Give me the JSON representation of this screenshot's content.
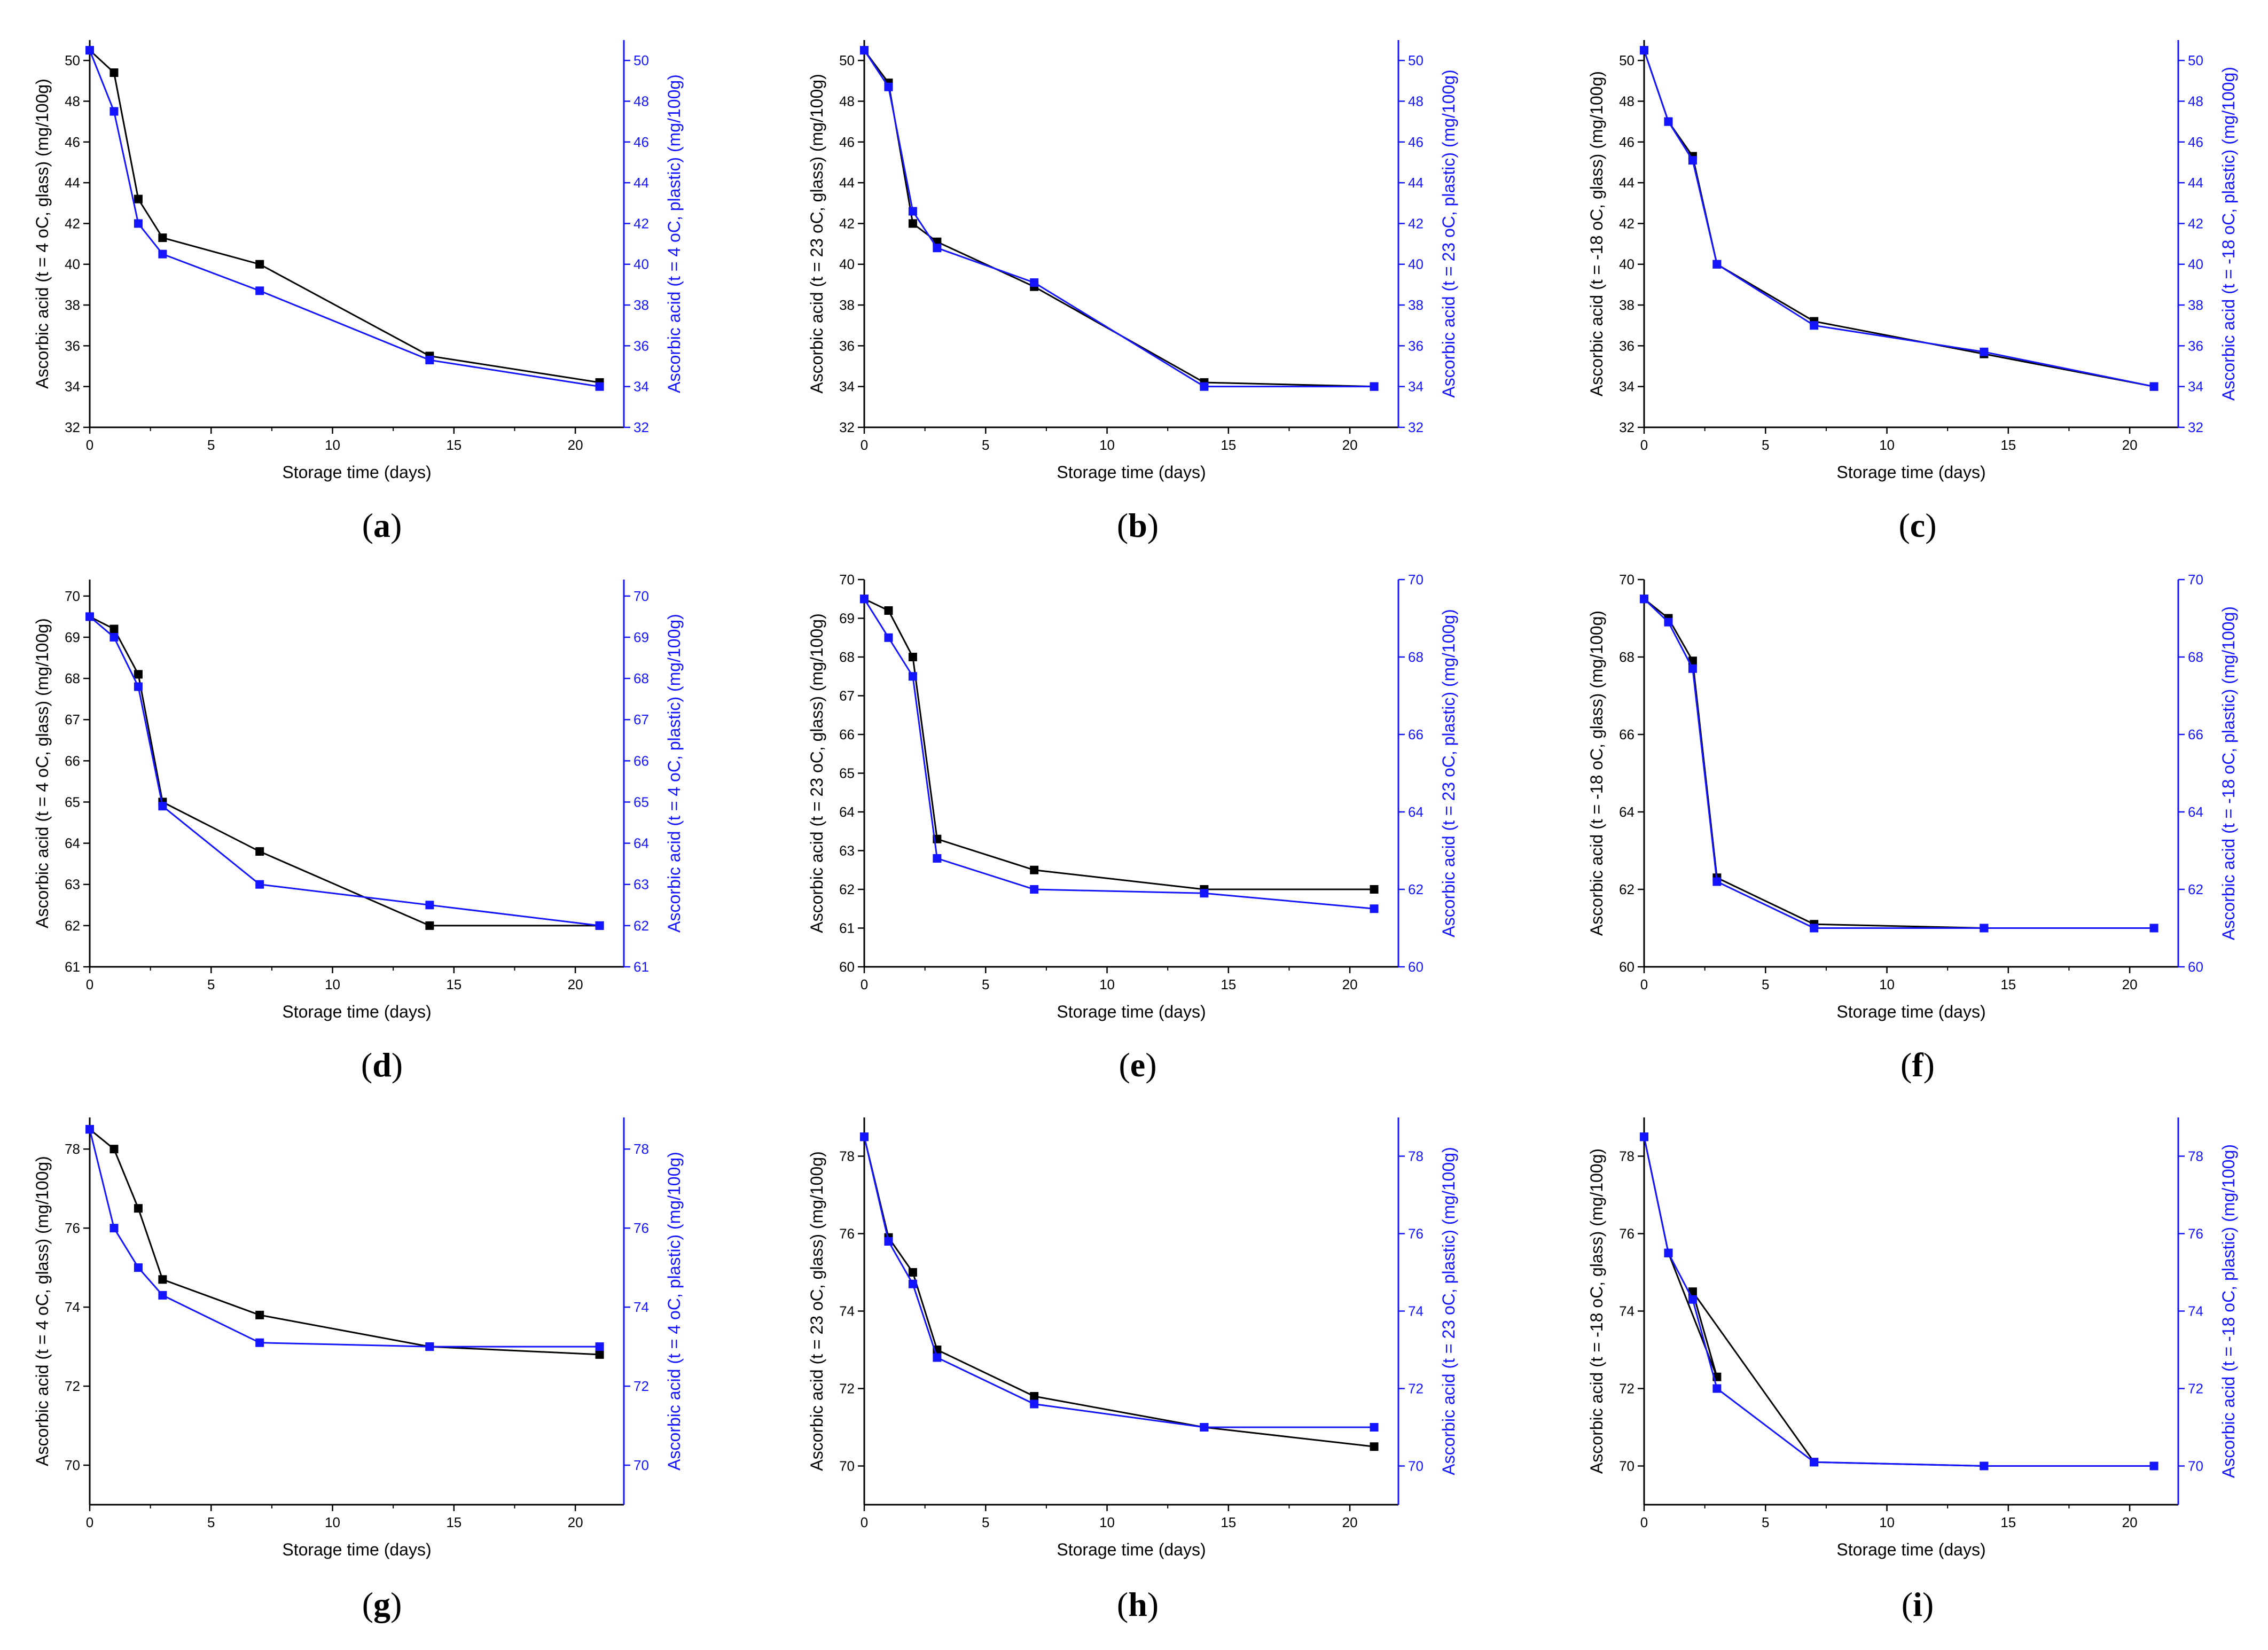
{
  "colors": {
    "glass": "#000000",
    "plastic": "#1414ff"
  },
  "chart_data": [
    {
      "panel": "a",
      "type": "line",
      "xlabel": "Storage time (days)",
      "ylabel": "Ascorbic acid (t = 4 oC, glass) (mg/100g)",
      "y2label": "Ascorbic acid (t = 4 oC, plastic) (mg/100g)",
      "xlim": [
        0,
        22
      ],
      "xticks": [
        0,
        5,
        10,
        15,
        20
      ],
      "ylim": [
        32,
        51
      ],
      "yticks": [
        32,
        34,
        36,
        38,
        40,
        42,
        44,
        46,
        48,
        50
      ],
      "series": [
        {
          "name": "glass",
          "x": [
            0,
            1,
            2,
            3,
            7,
            14,
            21
          ],
          "y": [
            50.5,
            49.4,
            43.2,
            41.3,
            40.0,
            35.5,
            34.2
          ]
        },
        {
          "name": "plastic",
          "x": [
            0,
            1,
            2,
            3,
            7,
            14,
            21
          ],
          "y": [
            50.5,
            47.5,
            42.0,
            40.5,
            38.7,
            35.3,
            34.0
          ]
        }
      ]
    },
    {
      "panel": "b",
      "type": "line",
      "xlabel": "Storage time (days)",
      "ylabel": "Ascorbic acid (t = 23 oC, glass) (mg/100g)",
      "y2label": "Ascorbic acid (t = 23 oC, plastic) (mg/100g)",
      "xlim": [
        0,
        22
      ],
      "xticks": [
        0,
        5,
        10,
        15,
        20
      ],
      "ylim": [
        32,
        51
      ],
      "yticks": [
        32,
        34,
        36,
        38,
        40,
        42,
        44,
        46,
        48,
        50
      ],
      "series": [
        {
          "name": "glass",
          "x": [
            0,
            1,
            2,
            3,
            7,
            14,
            21
          ],
          "y": [
            50.5,
            48.9,
            42.0,
            41.1,
            38.9,
            34.2,
            34.0
          ]
        },
        {
          "name": "plastic",
          "x": [
            0,
            1,
            2,
            3,
            7,
            14,
            21
          ],
          "y": [
            50.5,
            48.7,
            42.6,
            40.8,
            39.1,
            34.0,
            34.0
          ]
        }
      ]
    },
    {
      "panel": "c",
      "type": "line",
      "xlabel": "Storage time (days)",
      "ylabel": "Ascorbic acid (t = -18 oC, glass) (mg/100g)",
      "y2label": "Ascorbic acid (t = -18 oC, plastic) (mg/100g)",
      "xlim": [
        0,
        22
      ],
      "xticks": [
        0,
        5,
        10,
        15,
        20
      ],
      "ylim": [
        32,
        51
      ],
      "yticks": [
        32,
        34,
        36,
        38,
        40,
        42,
        44,
        46,
        48,
        50
      ],
      "series": [
        {
          "name": "glass",
          "x": [
            0,
            1,
            2,
            3,
            7,
            14,
            21
          ],
          "y": [
            50.5,
            47.0,
            45.3,
            40.0,
            37.2,
            35.6,
            34.0
          ]
        },
        {
          "name": "plastic",
          "x": [
            0,
            1,
            2,
            3,
            7,
            14,
            21
          ],
          "y": [
            50.5,
            47.0,
            45.1,
            40.0,
            37.0,
            35.7,
            34.0
          ]
        }
      ]
    },
    {
      "panel": "d",
      "type": "line",
      "xlabel": "Storage time (days)",
      "ylabel": "Ascorbic acid (t = 4 oC, glass) (mg/100g)",
      "y2label": "Ascorbic acid (t = 4 oC, plastic) (mg/100g)",
      "xlim": [
        0,
        22
      ],
      "xticks": [
        0,
        5,
        10,
        15,
        20
      ],
      "ylim": [
        61,
        70.4
      ],
      "yticks": [
        61,
        62,
        63,
        64,
        65,
        66,
        67,
        68,
        69,
        70
      ],
      "series": [
        {
          "name": "glass",
          "x": [
            0,
            1,
            2,
            3,
            7,
            14,
            21
          ],
          "y": [
            69.5,
            69.2,
            68.1,
            65.0,
            63.8,
            62.0,
            62.0
          ]
        },
        {
          "name": "plastic",
          "x": [
            0,
            1,
            2,
            3,
            7,
            14,
            21
          ],
          "y": [
            69.5,
            69.0,
            67.8,
            64.9,
            63.0,
            62.5,
            62.0
          ]
        }
      ]
    },
    {
      "panel": "e",
      "type": "line",
      "xlabel": "Storage time (days)",
      "ylabel": "Ascorbic acid (t = 23 oC, glass) (mg/100g)",
      "y2label": "Ascorbic acid (t = 23 oC, plastic) (mg/100g)",
      "xlim": [
        0,
        22
      ],
      "xticks": [
        0,
        5,
        10,
        15,
        20
      ],
      "ylim": [
        60,
        70
      ],
      "yticks": [
        60,
        61,
        62,
        63,
        64,
        65,
        66,
        67,
        68,
        69,
        70
      ],
      "y2ticks": [
        60,
        62,
        64,
        66,
        68,
        70
      ],
      "series": [
        {
          "name": "glass",
          "x": [
            0,
            1,
            2,
            3,
            7,
            14,
            21
          ],
          "y": [
            69.5,
            69.2,
            68.0,
            63.3,
            62.5,
            62.0,
            62.0
          ]
        },
        {
          "name": "plastic",
          "x": [
            0,
            1,
            2,
            3,
            7,
            14,
            21
          ],
          "y": [
            69.5,
            68.5,
            67.5,
            62.8,
            62.0,
            61.9,
            61.5
          ]
        }
      ]
    },
    {
      "panel": "f",
      "type": "line",
      "xlabel": "Storage time (days)",
      "ylabel": "Ascorbic acid (t = -18 oC, glass) (mg/100g)",
      "y2label": "Ascorbic acid (t = -18 oC, plastic) (mg/100g)",
      "xlim": [
        0,
        22
      ],
      "xticks": [
        0,
        5,
        10,
        15,
        20
      ],
      "ylim": [
        60,
        70
      ],
      "yticks": [
        60,
        62,
        64,
        66,
        68,
        70
      ],
      "series": [
        {
          "name": "glass",
          "x": [
            0,
            1,
            2,
            3,
            7,
            14,
            21
          ],
          "y": [
            69.5,
            69.0,
            67.9,
            62.3,
            61.1,
            61.0,
            61.0
          ]
        },
        {
          "name": "plastic",
          "x": [
            0,
            1,
            2,
            3,
            7,
            14,
            21
          ],
          "y": [
            69.5,
            68.9,
            67.7,
            62.2,
            61.0,
            61.0,
            61.0
          ]
        }
      ]
    },
    {
      "panel": "g",
      "type": "line",
      "xlabel": "Storage time (days)",
      "ylabel": "Ascorbic acid (t = 4 oC, glass) (mg/100g)",
      "y2label": "Ascorbic acid (t = 4 oC, plastic) (mg/100g)",
      "xlim": [
        0,
        22
      ],
      "xticks": [
        0,
        5,
        10,
        15,
        20
      ],
      "ylim": [
        69,
        78.8
      ],
      "yticks": [
        70,
        72,
        74,
        76,
        78
      ],
      "series": [
        {
          "name": "glass",
          "x": [
            0,
            1,
            2,
            3,
            7,
            14,
            21
          ],
          "y": [
            78.5,
            78.0,
            76.5,
            74.7,
            73.8,
            73.0,
            72.8
          ]
        },
        {
          "name": "plastic",
          "x": [
            0,
            1,
            2,
            3,
            7,
            14,
            21
          ],
          "y": [
            78.5,
            76.0,
            75.0,
            74.3,
            73.1,
            73.0,
            73.0
          ]
        }
      ]
    },
    {
      "panel": "h",
      "type": "line",
      "xlabel": "Storage time (days)",
      "ylabel": "Ascorbic acid (t = 23 oC, glass) (mg/100g)",
      "y2label": "Ascorbic acid (t = 23 oC, plastic) (mg/100g)",
      "xlim": [
        0,
        22
      ],
      "xticks": [
        0,
        5,
        10,
        15,
        20
      ],
      "ylim": [
        69,
        79
      ],
      "yticks": [
        70,
        72,
        74,
        76,
        78
      ],
      "series": [
        {
          "name": "glass",
          "x": [
            0,
            1,
            2,
            3,
            7,
            14,
            21
          ],
          "y": [
            78.5,
            75.9,
            75.0,
            73.0,
            71.8,
            71.0,
            70.5
          ]
        },
        {
          "name": "plastic",
          "x": [
            0,
            1,
            2,
            3,
            7,
            14,
            21
          ],
          "y": [
            78.5,
            75.8,
            74.7,
            72.8,
            71.6,
            71.0,
            71.0
          ]
        }
      ]
    },
    {
      "panel": "i",
      "type": "line",
      "xlabel": "Storage time (days)",
      "ylabel": "Ascorbic acid (t = -18 oC, glass) (mg/100g)",
      "y2label": "Ascorbic acid (t = -18 oC, plastic) (mg/100g)",
      "xlim": [
        0,
        22
      ],
      "xticks": [
        0,
        5,
        10,
        15,
        20
      ],
      "ylim": [
        69,
        79
      ],
      "yticks": [
        70,
        72,
        74,
        76,
        78
      ],
      "series": [
        {
          "name": "glass",
          "x": [
            0,
            1,
            3,
            2,
            7,
            14,
            21
          ],
          "y": [
            78.5,
            75.5,
            72.3,
            74.5,
            70.1,
            70.0,
            70.0
          ]
        },
        {
          "name": "plastic",
          "x": [
            0,
            1,
            2,
            3,
            7,
            14,
            21
          ],
          "y": [
            78.5,
            75.5,
            74.3,
            72.0,
            70.1,
            70.0,
            70.0
          ]
        }
      ]
    }
  ]
}
